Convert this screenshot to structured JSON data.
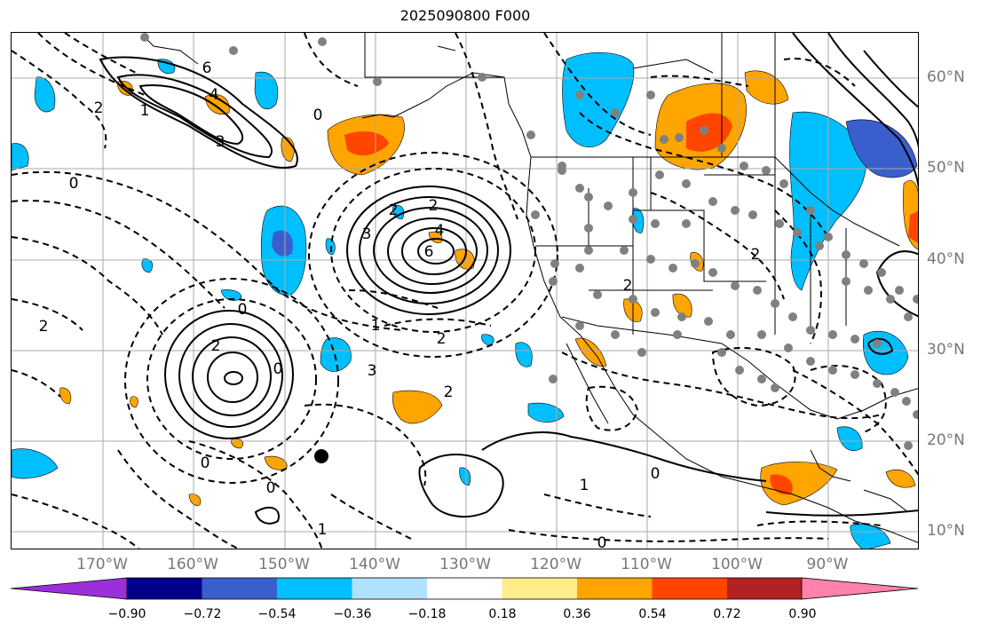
{
  "title": "2025090800 F000",
  "lon_labels": [
    "170°W",
    "160°W",
    "150°W",
    "140°W",
    "130°W",
    "120°W",
    "110°W",
    "100°W",
    "90°W"
  ],
  "lat_labels": [
    "60°N",
    "50°N",
    "40°N",
    "30°N",
    "20°N",
    "10°N"
  ],
  "colorbar": {
    "ticks": [
      "−0.90",
      "−0.72",
      "−0.54",
      "−0.36",
      "−0.18",
      "0.18",
      "0.36",
      "0.54",
      "0.72",
      "0.90"
    ],
    "colors": [
      "#9b30d9",
      "#00008b",
      "#3a5fcd",
      "#00bfff",
      "#b0e2ff",
      "#ffffff",
      "#ffec8b",
      "#ffa500",
      "#ff4500",
      "#b22222",
      "#ff82ab"
    ]
  },
  "contour_labels": [
    "6",
    "4",
    "3",
    "2",
    "1",
    "0",
    "0",
    "2",
    "3",
    "4",
    "6",
    "2",
    "2",
    "0",
    "0",
    "1",
    "2",
    "3",
    "2",
    "0",
    "0",
    "1",
    "2",
    "2",
    "0",
    "0",
    "1",
    "2"
  ],
  "colors": {
    "positive": "#ffa500",
    "positive_strong": "#ff4500",
    "negative": "#00bfff",
    "negative_strong": "#3a5fcd",
    "station": "#808080"
  }
}
